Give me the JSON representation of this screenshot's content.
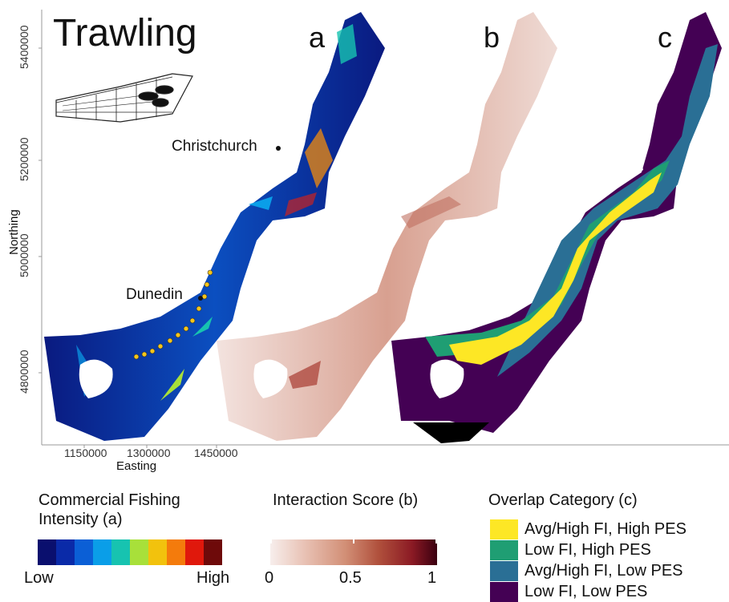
{
  "title": "Trawling",
  "panels": [
    "a",
    "b",
    "c"
  ],
  "cities": {
    "christchurch": "Christchurch",
    "dunedin": "Dunedin"
  },
  "axes": {
    "y_label": "Northing",
    "x_label": "Easting",
    "y_ticks": [
      "5400000",
      "5200000",
      "5000000",
      "4800000"
    ],
    "x_ticks": [
      "1150000",
      "1300000",
      "1450000"
    ]
  },
  "legend_a": {
    "title_line1": "Commercial Fishing",
    "title_line2": "Intensity (a)",
    "low": "Low",
    "high": "High",
    "colors": [
      "#0a0f6e",
      "#0a2aa8",
      "#0b5fd6",
      "#0a9ee8",
      "#17c3b0",
      "#a8e03a",
      "#f2c20d",
      "#f47b0c",
      "#e0180c",
      "#6e0a0a"
    ]
  },
  "legend_b": {
    "title": "Interaction Score (b)",
    "ticks": [
      "0",
      "0.5",
      "1"
    ]
  },
  "legend_c": {
    "title": "Overlap Category (c)",
    "items": [
      {
        "label": "Avg/High FI, High PES",
        "color": "#fde725"
      },
      {
        "label": "Low FI, High PES",
        "color": "#1f9e73"
      },
      {
        "label": "Avg/High FI, Low PES",
        "color": "#2a6f95"
      },
      {
        "label": "Low FI, Low PES",
        "color": "#440154"
      }
    ]
  }
}
